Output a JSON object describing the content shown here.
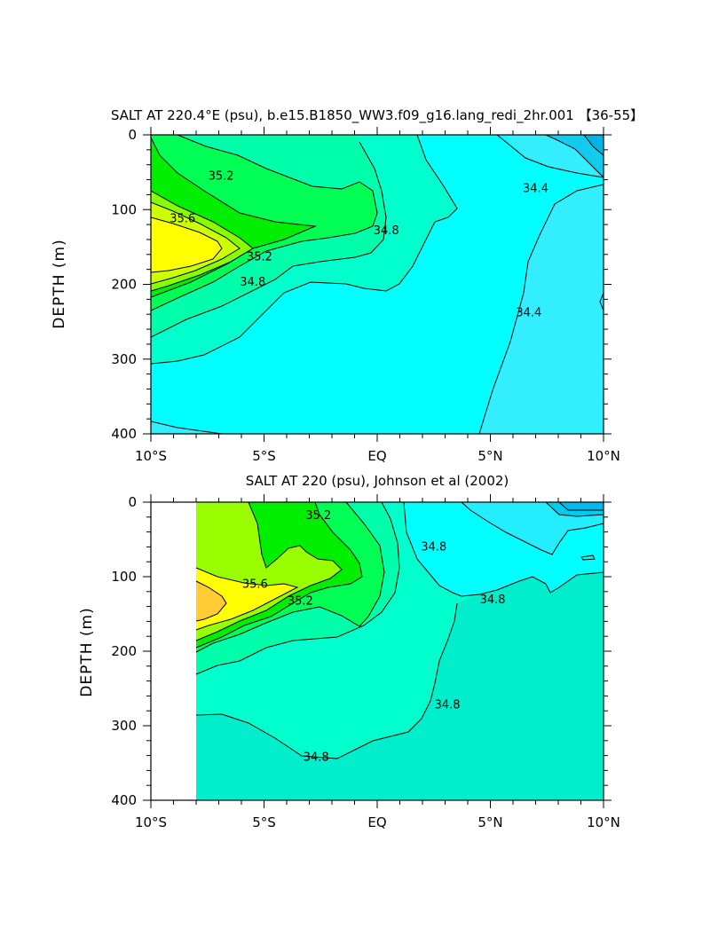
{
  "chart_data": [
    {
      "type": "contour",
      "title": "SALT AT 220.4°E (psu), b.e15.B1850_WW3.f09_g16.lang_redi_2hr.001 【36-55】",
      "ylabel": "DEPTH (m)",
      "xlabel": "",
      "x_tick_labels": [
        "10°S",
        "5°S",
        "EQ",
        "5°N",
        "10°N"
      ],
      "x_ticks": [
        -10,
        -5,
        0,
        5,
        10
      ],
      "y_tick_labels": [
        "0",
        "100",
        "200",
        "300",
        "400"
      ],
      "y_ticks": [
        0,
        100,
        200,
        300,
        400
      ],
      "xlim": [
        -10,
        10
      ],
      "ylim": [
        400,
        0
      ],
      "contour_levels": [
        34.2,
        34.4,
        34.6,
        34.8,
        35.0,
        35.2,
        35.4,
        35.6
      ],
      "contour_labels": [
        {
          "text": "35.2",
          "x": -6.9,
          "y": 55
        },
        {
          "text": "35.6",
          "x": -8.6,
          "y": 112
        },
        {
          "text": "35.2",
          "x": -5.2,
          "y": 163
        },
        {
          "text": "34.8",
          "x": -5.5,
          "y": 197
        },
        {
          "text": "34.8",
          "x": 0.4,
          "y": 128
        },
        {
          "text": "34.4",
          "x": 7.0,
          "y": 72
        },
        {
          "text": "34.4",
          "x": 6.7,
          "y": 238
        }
      ]
    },
    {
      "type": "contour",
      "title": "SALT AT 220 (psu), Johnson et al (2002)",
      "ylabel": "DEPTH (m)",
      "xlabel": "",
      "x_tick_labels": [
        "10°S",
        "5°S",
        "EQ",
        "5°N",
        "10°N"
      ],
      "x_ticks": [
        -10,
        -5,
        0,
        5,
        10
      ],
      "y_tick_labels": [
        "0",
        "100",
        "200",
        "300",
        "400"
      ],
      "y_ticks": [
        0,
        100,
        200,
        300,
        400
      ],
      "xlim": [
        -10,
        10
      ],
      "ylim": [
        400,
        0
      ],
      "data_xlim": [
        -8,
        10
      ],
      "contour_levels": [
        34.2,
        34.4,
        34.6,
        34.8,
        35.0,
        35.2,
        35.4,
        35.6,
        35.8
      ],
      "contour_labels": [
        {
          "text": "35.2",
          "x": -2.6,
          "y": 18
        },
        {
          "text": "35.6",
          "x": -5.4,
          "y": 110
        },
        {
          "text": "35.2",
          "x": -3.4,
          "y": 133
        },
        {
          "text": "34.8",
          "x": 2.5,
          "y": 60
        },
        {
          "text": "34.8",
          "x": 5.1,
          "y": 131
        },
        {
          "text": "34.8",
          "x": 3.1,
          "y": 272
        },
        {
          "text": "34.8",
          "x": -2.7,
          "y": 342
        }
      ]
    }
  ]
}
